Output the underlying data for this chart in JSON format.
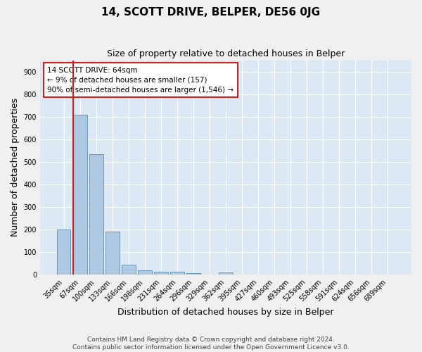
{
  "title": "14, SCOTT DRIVE, BELPER, DE56 0JG",
  "subtitle": "Size of property relative to detached houses in Belper",
  "xlabel": "Distribution of detached houses by size in Belper",
  "ylabel": "Number of detached properties",
  "categories": [
    "35sqm",
    "67sqm",
    "100sqm",
    "133sqm",
    "166sqm",
    "198sqm",
    "231sqm",
    "264sqm",
    "296sqm",
    "329sqm",
    "362sqm",
    "395sqm",
    "427sqm",
    "460sqm",
    "493sqm",
    "525sqm",
    "558sqm",
    "591sqm",
    "624sqm",
    "656sqm",
    "689sqm"
  ],
  "values": [
    200,
    710,
    535,
    190,
    45,
    18,
    13,
    13,
    8,
    0,
    9,
    0,
    0,
    0,
    0,
    0,
    0,
    0,
    0,
    0,
    0
  ],
  "bar_color": "#adc8e0",
  "bar_edge_color": "#6699bb",
  "background_color": "#dce8f4",
  "grid_color": "#ffffff",
  "vline_color": "#cc2222",
  "annotation_text": "14 SCOTT DRIVE: 64sqm\n← 9% of detached houses are smaller (157)\n90% of semi-detached houses are larger (1,546) →",
  "annotation_box_color": "#ffffff",
  "annotation_box_edge": "#cc2222",
  "ylim": [
    0,
    950
  ],
  "yticks": [
    0,
    100,
    200,
    300,
    400,
    500,
    600,
    700,
    800,
    900
  ],
  "footer": "Contains HM Land Registry data © Crown copyright and database right 2024.\nContains public sector information licensed under the Open Government Licence v3.0.",
  "title_fontsize": 11,
  "subtitle_fontsize": 9,
  "axis_label_fontsize": 9,
  "tick_fontsize": 7,
  "footer_fontsize": 6.5,
  "annotation_fontsize": 7.5
}
